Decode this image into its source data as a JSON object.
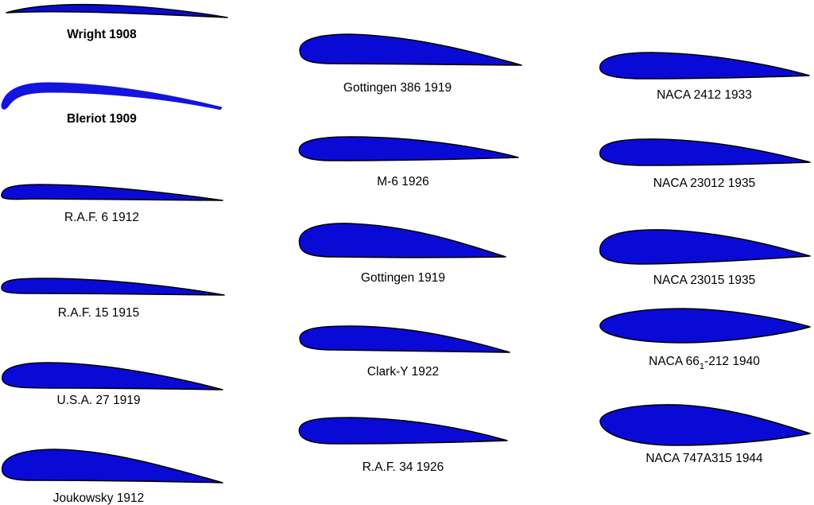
{
  "airfoils": [
    {
      "name": "Wright 1908",
      "bold": true
    },
    {
      "name": "Bleriot 1909",
      "bold": true
    },
    {
      "name": "R.A.F. 6 1912",
      "bold": false
    },
    {
      "name": "R.A.F. 15 1915",
      "bold": false
    },
    {
      "name": "U.S.A. 27 1919",
      "bold": false
    },
    {
      "name": "Joukowsky 1912",
      "bold": false
    },
    {
      "name": "Gottingen 386 1919",
      "bold": false
    },
    {
      "name": "M-6 1926",
      "bold": false
    },
    {
      "name": "Gottingen 1919",
      "bold": false
    },
    {
      "name": "Clark-Y 1922",
      "bold": false
    },
    {
      "name": "R.A.F. 34 1926",
      "bold": false
    },
    {
      "name": "NACA 2412 1933",
      "bold": false
    },
    {
      "name": "NACA 23012 1935",
      "bold": false
    },
    {
      "name": "NACA 23015 1935",
      "bold": false
    },
    {
      "name": "NACA 66",
      "subscript": "1",
      "suffix": "-212 1940",
      "bold": false
    },
    {
      "name": "NACA 747A315 1944",
      "bold": false
    }
  ],
  "colors": {
    "airfoil_fill": "#0a0ad6",
    "outline": "#000000",
    "background": "#ffffff"
  }
}
